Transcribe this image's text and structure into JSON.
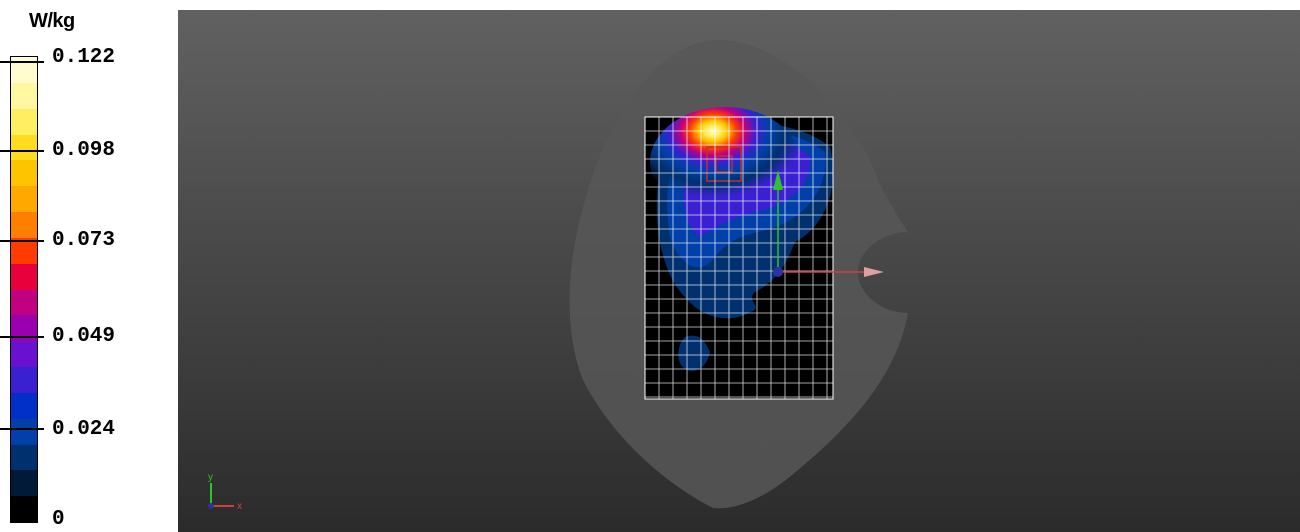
{
  "legend": {
    "unit": "W/kg",
    "labels": [
      "0.122",
      "0.098",
      "0.073",
      "0.049",
      "0.024",
      "0"
    ],
    "colors": [
      "#fffcd0",
      "#fff8a0",
      "#ffee60",
      "#ffdc20",
      "#ffc400",
      "#ffa800",
      "#ff8000",
      "#ff3c00",
      "#e8003c",
      "#c00080",
      "#9a00b0",
      "#6a10d0",
      "#3a20d0",
      "#0030c8",
      "#0040a8",
      "#00306e",
      "#001a38",
      "#000000"
    ]
  },
  "viewport": {
    "background_top": "#616161",
    "background_bottom": "#2b2b2b",
    "phantom_color": "#575757",
    "grid_color": "#ffffff",
    "grid_background": "#000000",
    "axis_x_color": "#d04040",
    "axis_y_color": "#30c030",
    "axis_origin_color": "#3030a0",
    "triad": {
      "x_label": "x",
      "y_label": "y"
    }
  }
}
